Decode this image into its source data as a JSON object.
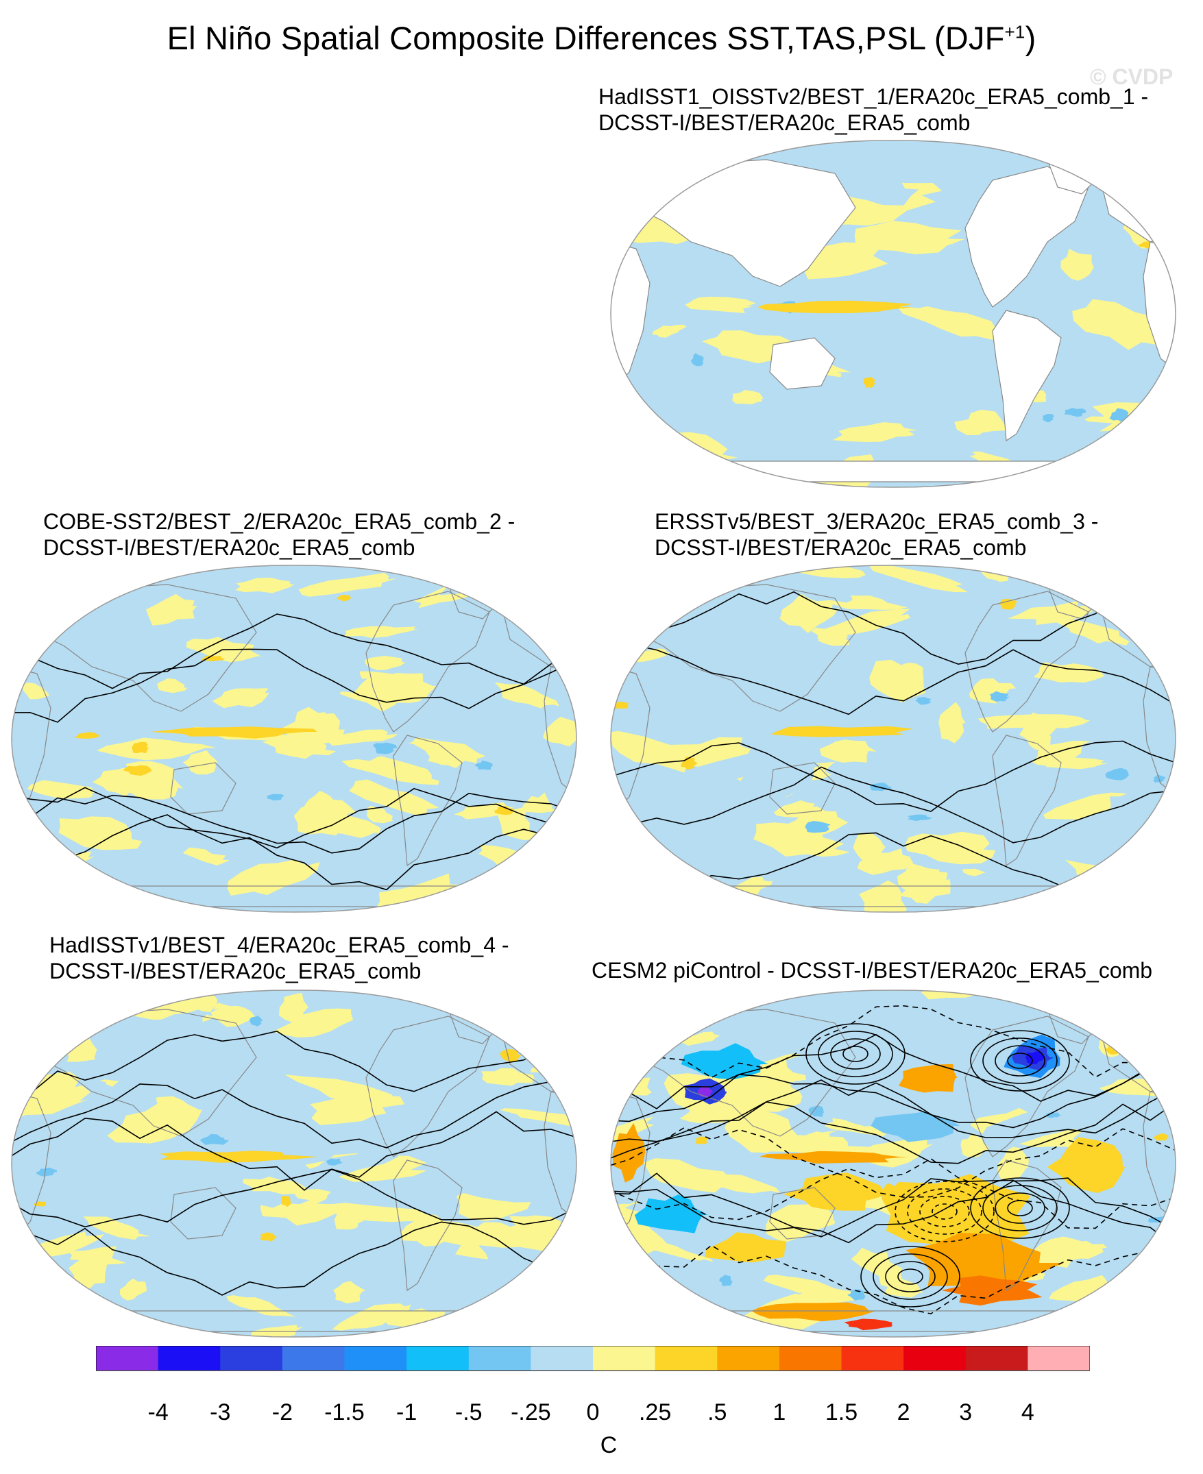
{
  "title": {
    "text": "El Niño Spatial Composite Differences SST,TAS,PSL (DJF",
    "superscript": "+1",
    "closing": ")"
  },
  "watermark": "© CVDP",
  "chart_data": {
    "type": "heatmap",
    "projection": "Robinson (global, Pacific-centered)",
    "units": "C",
    "colorbar": {
      "levels": [
        "-4",
        "-3",
        "-2",
        "-1.5",
        "-1",
        "-.5",
        "-.25",
        "0",
        ".25",
        ".5",
        "1",
        "1.5",
        "2",
        "3",
        "4"
      ],
      "colors": [
        "#8a2be8",
        "#1a0ff5",
        "#2b3ee0",
        "#3c78ea",
        "#1e90f8",
        "#12bff8",
        "#74c6f2",
        "#b6ddf2",
        "#fcf690",
        "#fdd428",
        "#fba400",
        "#f97700",
        "#f73210",
        "#e90010",
        "#c91a1c",
        "#ffafb4"
      ]
    },
    "panels": [
      {
        "id": "panel-1",
        "line1": "HadISST1_OISSTv2/BEST_1/ERA20c_ERA5_comb_1 -",
        "line2": "DCSST-I/BEST/ERA20c_ERA5_comb",
        "fields": [
          "SST"
        ],
        "land_masked": true,
        "psl_contours": false,
        "amplitude": "weak (mostly -.25 to .25)"
      },
      {
        "id": "panel-2",
        "line1": "COBE-SST2/BEST_2/ERA20c_ERA5_comb_2 -",
        "line2": "DCSST-I/BEST/ERA20c_ERA5_comb",
        "fields": [
          "SST",
          "TAS",
          "PSL"
        ],
        "land_masked": false,
        "psl_contours": true,
        "amplitude": "weak (mostly -.25 to .25)"
      },
      {
        "id": "panel-3",
        "line1": "ERSSTv5/BEST_3/ERA20c_ERA5_comb_3 -",
        "line2": "DCSST-I/BEST/ERA20c_ERA5_comb",
        "fields": [
          "SST",
          "TAS",
          "PSL"
        ],
        "land_masked": false,
        "psl_contours": true,
        "amplitude": "weak (mostly -.25 to .25)"
      },
      {
        "id": "panel-4",
        "line1": "HadISSTv1/BEST_4/ERA20c_ERA5_comb_4 -",
        "line2": "DCSST-I/BEST/ERA20c_ERA5_comb",
        "fields": [
          "SST",
          "TAS",
          "PSL"
        ],
        "land_masked": false,
        "psl_contours": true,
        "amplitude": "weak (mostly -.25 to .25)"
      },
      {
        "id": "panel-5",
        "line1": "CESM2 piControl - DCSST-I/BEST/ERA20c_ERA5_comb",
        "line2": "",
        "fields": [
          "SST",
          "TAS",
          "PSL"
        ],
        "land_masked": false,
        "psl_contours": true,
        "amplitude": "strong (up to about -3 and +2)"
      }
    ]
  }
}
